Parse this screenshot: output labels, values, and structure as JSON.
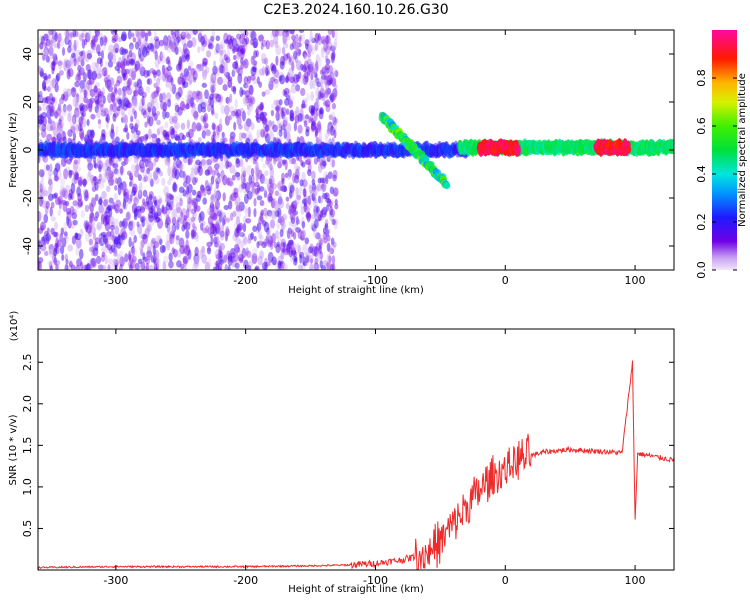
{
  "title": "C2E3.2024.160.10.26.G30",
  "chart_data": [
    {
      "type": "heatmap",
      "xlabel": "Height of straight line (km)",
      "ylabel": "Frequency (Hz)",
      "xlim": [
        -360,
        130
      ],
      "ylim": [
        -50,
        50
      ],
      "x_ticks": [
        -300,
        -200,
        -100,
        0,
        100
      ],
      "y_ticks": [
        -40,
        -20,
        0,
        20,
        40
      ],
      "colorbar": {
        "label": "Normalized spectral amplitude",
        "range": [
          0.0,
          1.0
        ],
        "ticks": [
          0.0,
          0.2,
          0.4,
          0.6,
          0.8
        ],
        "colormap": "rainbow (purple-blue-cyan-green-yellow-red-pink)"
      },
      "features": [
        {
          "x": [
            -360,
            -130
          ],
          "y_range": [
            -50,
            50
          ],
          "amplitude": 0.05,
          "note": "scattered noise"
        },
        {
          "x": [
            -360,
            -30
          ],
          "y": 0,
          "amplitude": 0.2
        },
        {
          "x": [
            -95,
            -45
          ],
          "y": [
            14,
            -14
          ],
          "amplitude": 0.3
        },
        {
          "x": [
            -35,
            130
          ],
          "y": 1,
          "amplitude": 0.45
        },
        {
          "x": [
            -20,
            10
          ],
          "y": 1,
          "amplitude": 0.9
        },
        {
          "x": [
            70,
            95
          ],
          "y": 1,
          "amplitude": 0.9
        }
      ]
    },
    {
      "type": "line",
      "xlabel": "Height of straight line (km)",
      "ylabel": "SNR (10 * v/v)",
      "multiplier": "(x10⁴)",
      "xlim": [
        -360,
        130
      ],
      "ylim": [
        0,
        2.9
      ],
      "x_ticks": [
        -300,
        -200,
        -100,
        0,
        100
      ],
      "y_ticks": [
        0.5,
        1.0,
        1.5,
        2.0,
        2.5
      ],
      "color": "#ee2a2a",
      "series": [
        {
          "x": [
            -360,
            -300,
            -200,
            -150,
            -120,
            -100,
            -80,
            -60,
            -50,
            -40,
            -30,
            -20,
            -10,
            0,
            10,
            20,
            30,
            50,
            70,
            90,
            98,
            100,
            102,
            110,
            120,
            130
          ],
          "y": [
            0.03,
            0.04,
            0.04,
            0.05,
            0.06,
            0.08,
            0.12,
            0.2,
            0.35,
            0.55,
            0.75,
            0.95,
            1.1,
            1.22,
            1.32,
            1.38,
            1.42,
            1.45,
            1.43,
            1.41,
            2.5,
            0.6,
            1.4,
            1.38,
            1.35,
            1.32
          ]
        }
      ]
    }
  ]
}
